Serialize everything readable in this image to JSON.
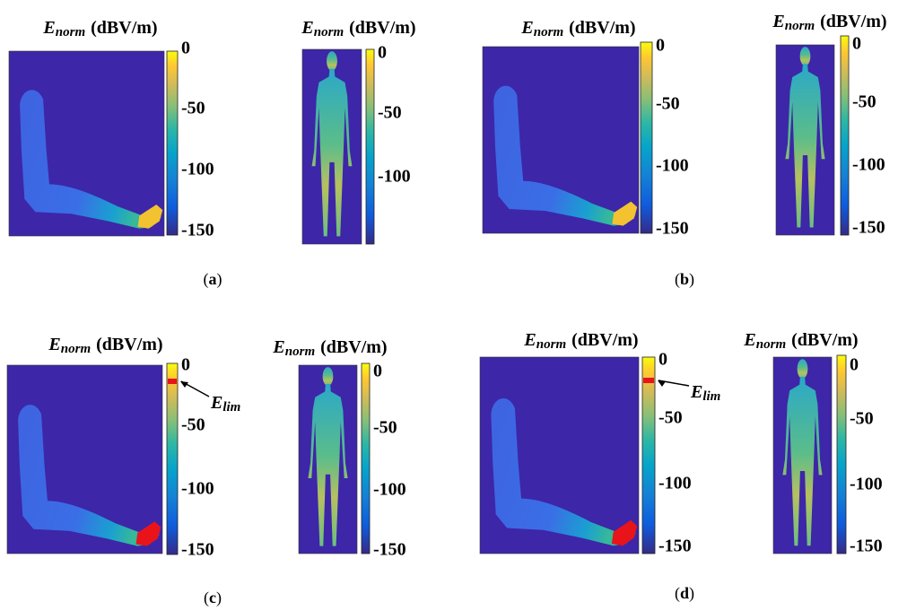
{
  "figures": [
    {
      "kind": "arm",
      "title": {
        "symbol": "E",
        "subscript": "norm",
        "unit": "(dBV/m)"
      },
      "colorbar_ticks": [
        0,
        -50,
        -100,
        -150
      ]
    },
    {
      "kind": "body",
      "title": {
        "symbol": "E",
        "subscript": "norm",
        "unit": "(dBV/m)"
      },
      "colorbar_ticks": [
        0,
        -50,
        -100
      ]
    },
    {
      "kind": "arm",
      "title": {
        "symbol": "E",
        "subscript": "norm",
        "unit": "(dBV/m)"
      },
      "colorbar_ticks": [
        0,
        -50,
        -100,
        -150
      ]
    },
    {
      "kind": "body",
      "title": {
        "symbol": "E",
        "subscript": "norm",
        "unit": "(dBV/m)"
      },
      "colorbar_ticks": [
        0,
        -50,
        -100,
        -150
      ]
    },
    {
      "kind": "arm",
      "title": {
        "symbol": "E",
        "subscript": "norm",
        "unit": "(dBV/m)"
      },
      "colorbar_ticks": [
        0,
        -50,
        -100,
        -150
      ],
      "annotation": {
        "symbol": "E",
        "subscript": "lim"
      }
    },
    {
      "kind": "body",
      "title": {
        "symbol": "E",
        "subscript": "norm",
        "unit": "(dBV/m)"
      },
      "colorbar_ticks": [
        0,
        -50,
        -100,
        -150
      ]
    },
    {
      "kind": "arm",
      "title": {
        "symbol": "E",
        "subscript": "norm",
        "unit": "(dBV/m)"
      },
      "colorbar_ticks": [
        0,
        -50,
        -100,
        -150
      ],
      "annotation": {
        "symbol": "E",
        "subscript": "lim"
      }
    },
    {
      "kind": "body",
      "title": {
        "symbol": "E",
        "subscript": "norm",
        "unit": "(dBV/m)"
      },
      "colorbar_ticks": [
        0,
        -50,
        -100,
        -150
      ]
    }
  ],
  "panel_labels": [
    {
      "prefix": "(",
      "letter": "a",
      "suffix": ")"
    },
    {
      "prefix": "(",
      "letter": "b",
      "suffix": ")"
    },
    {
      "prefix": "(",
      "letter": "c",
      "suffix": ")"
    },
    {
      "prefix": "(",
      "letter": "d",
      "suffix": ")"
    }
  ]
}
